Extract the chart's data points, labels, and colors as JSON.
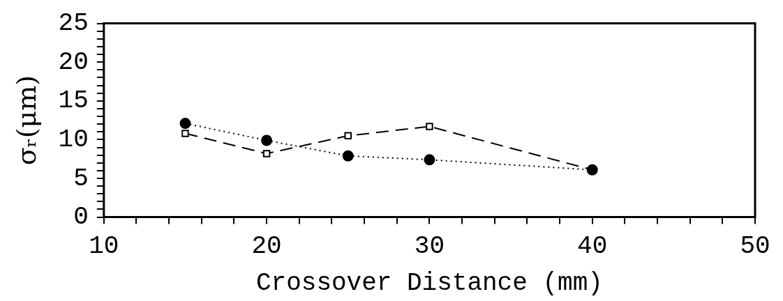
{
  "chart_data": {
    "type": "line",
    "xlabel": "Crossover Distance (mm)",
    "ylabel": "σᵣ(μm)",
    "x": [
      15,
      20,
      25,
      30,
      40
    ],
    "series": [
      {
        "color": "#000000",
        "marker": "circle",
        "line_style": "dotted",
        "values": [
          12.1,
          9.9,
          7.9,
          7.4,
          6.1
        ]
      },
      {
        "color": "#000000",
        "marker": "square",
        "line_style": "dashed",
        "values": [
          10.8,
          8.2,
          10.5,
          11.7,
          6.1
        ]
      }
    ],
    "xlim": [
      10,
      50
    ],
    "ylim": [
      0,
      25
    ],
    "xticks": [
      10,
      {
        "value": 12,
        "label": null
      },
      {
        "value": 14,
        "label": null
      },
      {
        "value": 16,
        "label": null
      },
      {
        "value": 18,
        "label": null
      },
      20,
      {
        "value": 22,
        "label": null
      },
      {
        "value": 24,
        "label": null
      },
      {
        "value": 26,
        "label": null
      },
      {
        "value": 28,
        "label": null
      },
      30,
      {
        "value": 32,
        "label": null
      },
      {
        "value": 34,
        "label": null
      },
      {
        "value": 36,
        "label": null
      },
      {
        "value": 38,
        "label": null
      },
      40,
      {
        "value": 42,
        "label": null
      },
      {
        "value": 44,
        "label": null
      },
      {
        "value": 46,
        "label": null
      },
      {
        "value": 48,
        "label": null
      },
      50
    ],
    "yticks": [
      0,
      {
        "value": 1,
        "label": null
      },
      {
        "value": 2,
        "label": null
      },
      {
        "value": 3,
        "label": null
      },
      {
        "value": 4,
        "label": null
      },
      5,
      {
        "value": 6,
        "label": null
      },
      {
        "value": 7,
        "label": null
      },
      {
        "value": 8,
        "label": null
      },
      {
        "value": 9,
        "label": null
      },
      10,
      {
        "value": 11,
        "label": null
      },
      {
        "value": 12,
        "label": null
      },
      {
        "value": 13,
        "label": null
      },
      {
        "value": 14,
        "label": null
      },
      15,
      {
        "value": 16,
        "label": null
      },
      {
        "value": 17,
        "label": null
      },
      {
        "value": 18,
        "label": null
      },
      {
        "value": 19,
        "label": null
      },
      20,
      {
        "value": 21,
        "label": null
      },
      {
        "value": 22,
        "label": null
      },
      {
        "value": 23,
        "label": null
      },
      {
        "value": 24,
        "label": null
      },
      25
    ],
    "grid": false,
    "legend": false
  }
}
